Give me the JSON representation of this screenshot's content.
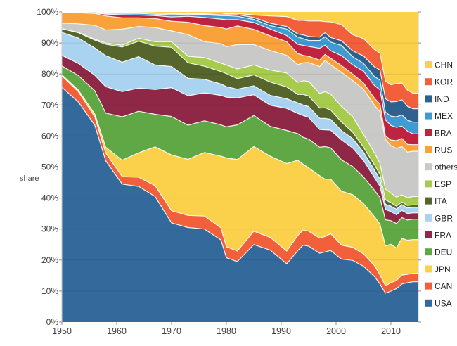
{
  "page": {
    "background": "#ffffff"
  },
  "chart_data": {
    "type": "area",
    "stacked": true,
    "normalized_percent": true,
    "title": "",
    "xlabel": "",
    "ylabel": "share",
    "unit": "%",
    "grid": true,
    "legend_position": "right",
    "xlim": [
      1950,
      2015
    ],
    "ylim": [
      0,
      100
    ],
    "xticks": [
      1950,
      1960,
      1970,
      1980,
      1990,
      2000,
      2010
    ],
    "ytick_labels": [
      "0%",
      "10%",
      "20%",
      "30%",
      "40%",
      "50%",
      "60%",
      "70%",
      "80%",
      "90%",
      "100%"
    ],
    "x": [
      1950,
      1953,
      1956,
      1958,
      1961,
      1964,
      1967,
      1970,
      1973,
      1976,
      1979,
      1980,
      1982,
      1985,
      1988,
      1991,
      1993,
      1994,
      1995,
      1997,
      1998,
      1999,
      2001,
      2003,
      2005,
      2007,
      2008,
      2009,
      2010,
      2011,
      2012,
      2013,
      2014,
      2015
    ],
    "legend_order": [
      "CHN",
      "KOR",
      "IND",
      "MEX",
      "BRA",
      "RUS",
      "others",
      "ESP",
      "ITA",
      "GBR",
      "FRA",
      "DEU",
      "JPN",
      "CAN",
      "USA"
    ],
    "series": [
      {
        "name": "USA",
        "color": "#336A9B",
        "values": [
          75.7,
          71.0,
          63.5,
          52.0,
          44.5,
          44.0,
          40.5,
          32.0,
          30.5,
          30.0,
          26.5,
          20.8,
          19.5,
          25.0,
          23.2,
          18.8,
          23.0,
          24.8,
          24.5,
          22.2,
          22.6,
          23.1,
          20.3,
          19.9,
          18.0,
          14.7,
          12.3,
          9.3,
          10.0,
          10.8,
          12.3,
          12.7,
          13.0,
          13.0
        ]
      },
      {
        "name": "CAN",
        "color": "#F2603B",
        "values": [
          3.7,
          3.3,
          2.7,
          2.5,
          2.4,
          3.0,
          3.5,
          3.9,
          3.9,
          4.2,
          3.9,
          3.5,
          3.4,
          4.3,
          4.1,
          4.1,
          4.9,
          4.9,
          4.8,
          4.9,
          5.0,
          5.4,
          4.5,
          4.2,
          4.0,
          3.5,
          2.9,
          2.4,
          2.7,
          2.6,
          2.9,
          2.7,
          2.7,
          2.7
        ]
      },
      {
        "name": "JPN",
        "color": "#FBD14B",
        "values": [
          0.3,
          0.5,
          0.9,
          1.9,
          5.3,
          7.9,
          12.5,
          18.0,
          18.1,
          20.5,
          23.1,
          28.7,
          29.5,
          27.3,
          26.2,
          28.2,
          24.3,
          21.2,
          20.4,
          20.1,
          18.5,
          17.6,
          17.4,
          17.0,
          16.2,
          15.8,
          16.4,
          12.9,
          12.4,
          10.5,
          11.8,
          11.0,
          10.9,
          10.9
        ]
      },
      {
        "name": "DEU",
        "color": "#60A846",
        "values": [
          2.9,
          4.7,
          7.5,
          11.0,
          14.0,
          13.5,
          10.5,
          12.4,
          11.0,
          10.2,
          10.1,
          10.0,
          11.2,
          10.0,
          9.6,
          10.7,
          8.6,
          8.7,
          9.3,
          9.2,
          10.5,
          10.1,
          10.1,
          9.1,
          8.6,
          8.5,
          8.6,
          8.4,
          7.6,
          7.9,
          6.7,
          6.5,
          6.6,
          6.6
        ]
      },
      {
        "name": "FRA",
        "color": "#8E2846",
        "values": [
          3.4,
          3.9,
          5.0,
          8.5,
          8.1,
          7.5,
          8.0,
          9.3,
          9.5,
          9.0,
          9.5,
          9.6,
          8.7,
          6.7,
          6.8,
          7.1,
          6.5,
          7.0,
          7.0,
          5.7,
          5.4,
          5.7,
          6.4,
          6.0,
          5.3,
          4.1,
          3.6,
          3.3,
          2.9,
          2.8,
          2.3,
          2.1,
          2.0,
          2.0
        ]
      },
      {
        "name": "GBR",
        "color": "#A9D3F1",
        "values": [
          7.4,
          8.2,
          8.8,
          10.0,
          9.5,
          10.2,
          7.9,
          6.8,
          5.6,
          4.4,
          3.7,
          3.4,
          2.8,
          2.9,
          3.2,
          3.1,
          3.4,
          3.4,
          3.5,
          3.6,
          3.7,
          3.5,
          3.0,
          3.0,
          2.7,
          2.4,
          2.3,
          1.7,
          1.8,
          1.8,
          1.9,
          1.8,
          1.8,
          1.8
        ]
      },
      {
        "name": "ITA",
        "color": "#55652C",
        "values": [
          1.2,
          1.7,
          2.5,
          3.7,
          4.9,
          5.0,
          6.1,
          6.2,
          5.0,
          4.2,
          4.0,
          4.2,
          3.4,
          3.5,
          4.3,
          3.8,
          2.7,
          3.4,
          3.4,
          3.3,
          3.4,
          3.0,
          2.8,
          2.1,
          1.6,
          1.7,
          1.5,
          1.4,
          1.1,
          1.0,
          0.8,
          0.8,
          0.8,
          0.8
        ]
      },
      {
        "name": "ESP",
        "color": "#A6CB4D",
        "values": [
          0.0,
          0.1,
          0.3,
          0.4,
          0.6,
          1.0,
          1.4,
          1.8,
          2.1,
          2.8,
          2.7,
          2.8,
          3.1,
          3.2,
          3.9,
          4.5,
          3.9,
          4.4,
          4.7,
          4.7,
          5.2,
          5.1,
          5.0,
          5.0,
          4.1,
          3.9,
          3.6,
          3.5,
          3.1,
          2.9,
          2.3,
          2.5,
          2.7,
          2.7
        ]
      },
      {
        "name": "others",
        "color": "#C9C9C7",
        "values": [
          1.8,
          2.8,
          4.5,
          4.2,
          5.2,
          3.8,
          4.6,
          3.5,
          7.0,
          5.1,
          6.3,
          5.9,
          7.9,
          6.6,
          6.3,
          5.7,
          5.7,
          5.8,
          6.1,
          8.7,
          10.1,
          9.5,
          11.0,
          11.6,
          14.6,
          15.3,
          16.6,
          15.9,
          15.3,
          15.7,
          15.6,
          14.7,
          14.6,
          14.6
        ]
      },
      {
        "name": "RUS",
        "color": "#F9A23C",
        "values": [
          3.4,
          3.5,
          3.8,
          4.5,
          3.6,
          2.8,
          2.9,
          3.1,
          4.0,
          5.2,
          5.2,
          5.7,
          6.0,
          4.9,
          4.7,
          4.4,
          3.6,
          2.4,
          2.0,
          2.1,
          1.9,
          2.1,
          2.2,
          2.1,
          2.0,
          2.3,
          2.5,
          1.2,
          1.8,
          2.5,
          2.6,
          2.5,
          2.1,
          2.1
        ]
      },
      {
        "name": "BRA",
        "color": "#BE2440",
        "values": [
          0.0,
          0.0,
          0.1,
          0.6,
          1.0,
          0.9,
          0.9,
          1.4,
          1.9,
          2.6,
          2.7,
          3.0,
          2.0,
          2.2,
          2.2,
          2.0,
          3.0,
          3.2,
          3.2,
          3.8,
          3.0,
          2.4,
          3.2,
          3.0,
          3.8,
          4.1,
          4.6,
          5.2,
          4.7,
          4.3,
          4.0,
          4.3,
          3.5,
          3.5
        ]
      },
      {
        "name": "MEX",
        "color": "#3E9CD2",
        "values": [
          0.0,
          0.1,
          0.1,
          0.2,
          0.4,
          0.5,
          0.5,
          0.7,
          0.7,
          0.9,
          1.1,
          1.3,
          1.1,
          1.0,
          1.1,
          2.1,
          2.3,
          2.2,
          1.9,
          2.5,
          2.7,
          2.8,
          3.3,
          2.6,
          2.5,
          2.9,
          3.1,
          2.5,
          3.0,
          3.4,
          3.6,
          3.5,
          3.8,
          3.8
        ]
      },
      {
        "name": "IND",
        "color": "#2F618F",
        "values": [
          0.2,
          0.2,
          0.3,
          0.3,
          0.4,
          0.3,
          0.3,
          0.3,
          0.2,
          0.2,
          0.3,
          0.3,
          0.5,
          0.6,
          0.8,
          0.8,
          1.0,
          1.2,
          1.3,
          1.1,
          1.3,
          1.5,
          1.5,
          1.9,
          2.4,
          3.1,
          3.3,
          4.3,
          4.6,
          4.9,
          4.9,
          4.5,
          4.3,
          4.3
        ]
      },
      {
        "name": "KOR",
        "color": "#F2603B",
        "values": [
          0.0,
          0.0,
          0.0,
          0.0,
          0.0,
          0.0,
          0.1,
          0.1,
          0.1,
          0.2,
          0.5,
          0.3,
          0.4,
          0.8,
          2.3,
          3.2,
          4.4,
          4.7,
          5.0,
          5.2,
          3.6,
          5.0,
          5.2,
          5.2,
          5.6,
          5.6,
          5.4,
          5.7,
          5.5,
          5.8,
          5.4,
          5.2,
          5.0,
          5.0
        ]
      },
      {
        "name": "CHN",
        "color": "#FBD14B",
        "values": [
          0.0,
          0.0,
          0.0,
          0.2,
          0.1,
          0.2,
          0.3,
          0.5,
          0.4,
          0.5,
          0.4,
          0.6,
          0.5,
          1.0,
          1.3,
          1.5,
          2.7,
          2.7,
          2.9,
          2.9,
          3.1,
          3.2,
          4.1,
          7.3,
          8.6,
          12.1,
          13.3,
          22.3,
          23.5,
          23.1,
          22.9,
          25.2,
          26.2,
          26.2
        ]
      }
    ]
  }
}
